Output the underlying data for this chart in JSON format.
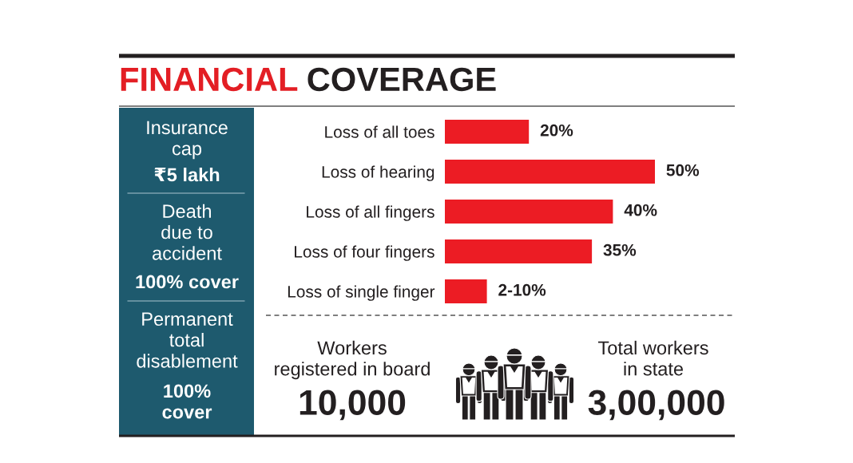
{
  "chart_data": {
    "type": "bar",
    "orientation": "horizontal",
    "title": "FINANCIAL COVERAGE",
    "categories": [
      "Loss of all toes",
      "Loss of hearing",
      "Loss of all fingers",
      "Loss of four fingers",
      "Loss of single finger"
    ],
    "values": [
      20,
      50,
      40,
      35,
      10
    ],
    "value_labels": [
      "20%",
      "50%",
      "40%",
      "35%",
      null
    ],
    "color": "#ec1c24",
    "tick_labels": "y",
    "annotations": [
      "Insurance\ncap",
      "₹5 lakh",
      "Death\ndue to\naccident",
      "100% cover",
      "Permanent\ntotal\ndisablement",
      "100%\ncover",
      "Workers\nregistered in board",
      "10,000",
      "Total workers\nin state",
      "3,00,000",
      {
        "text": "2-10%",
        "x": 10,
        "y": "Loss of single finger"
      }
    ]
  }
}
